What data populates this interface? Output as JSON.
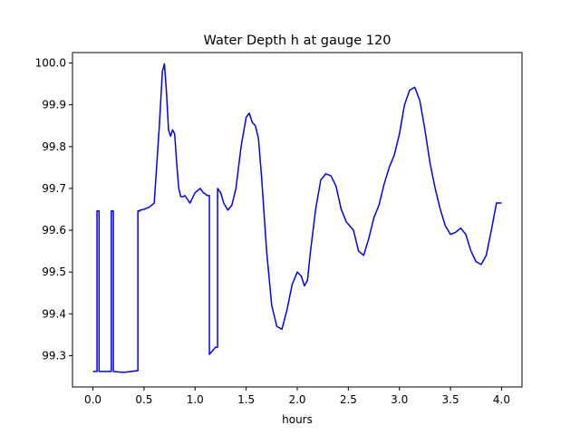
{
  "chart_data": {
    "type": "line",
    "title": "Water Depth h at gauge 120",
    "xlabel": "hours",
    "ylabel": "",
    "xlim": [
      -0.2,
      4.2
    ],
    "ylim": [
      99.225,
      100.025
    ],
    "xticks": [
      0.0,
      0.5,
      1.0,
      1.5,
      2.0,
      2.5,
      3.0,
      3.5,
      4.0
    ],
    "xtick_labels": [
      "0.0",
      "0.5",
      "1.0",
      "1.5",
      "2.0",
      "2.5",
      "3.0",
      "3.5",
      "4.0"
    ],
    "yticks": [
      99.3,
      99.4,
      99.5,
      99.6,
      99.7,
      99.8,
      99.9,
      100.0
    ],
    "ytick_labels": [
      "99.3",
      "99.4",
      "99.5",
      "99.6",
      "99.7",
      "99.8",
      "99.9",
      "100.0"
    ],
    "grid": false,
    "color": "#0000ff",
    "series": [
      {
        "x": [
          0.0,
          0.04,
          0.04,
          0.06,
          0.06,
          0.18,
          0.18,
          0.2,
          0.2,
          0.3,
          0.44,
          0.44,
          0.46,
          0.46,
          0.5,
          0.55,
          0.6,
          0.65,
          0.68,
          0.7,
          0.72,
          0.74,
          0.76,
          0.78,
          0.8,
          0.82,
          0.84,
          0.86,
          0.88,
          0.9,
          0.95,
          1.0,
          1.05,
          1.08,
          1.12,
          1.14,
          1.14,
          1.2,
          1.22,
          1.22,
          1.25,
          1.28,
          1.32,
          1.36,
          1.4,
          1.45,
          1.5,
          1.53,
          1.56,
          1.59,
          1.62,
          1.65,
          1.7,
          1.75,
          1.8,
          1.85,
          1.9,
          1.95,
          2.0,
          2.04,
          2.07,
          2.1,
          2.13,
          2.18,
          2.23,
          2.28,
          2.33,
          2.38,
          2.43,
          2.48,
          2.55,
          2.6,
          2.65,
          2.7,
          2.75,
          2.8,
          2.85,
          2.9,
          2.95,
          3.0,
          3.05,
          3.1,
          3.15,
          3.2,
          3.25,
          3.3,
          3.35,
          3.4,
          3.45,
          3.5,
          3.55,
          3.6,
          3.65,
          3.7,
          3.75,
          3.8,
          3.85,
          3.9,
          3.95,
          4.0
        ],
        "y": [
          99.262,
          99.262,
          99.646,
          99.646,
          99.262,
          99.262,
          99.646,
          99.646,
          99.262,
          99.26,
          99.264,
          99.646,
          99.646,
          99.648,
          99.65,
          99.655,
          99.665,
          99.85,
          99.98,
          99.998,
          99.93,
          99.84,
          99.825,
          99.84,
          99.83,
          99.76,
          99.7,
          99.68,
          99.68,
          99.683,
          99.665,
          99.69,
          99.7,
          99.69,
          99.683,
          99.683,
          99.303,
          99.32,
          99.32,
          99.7,
          99.69,
          99.665,
          99.648,
          99.66,
          99.7,
          99.8,
          99.87,
          99.88,
          99.858,
          99.85,
          99.82,
          99.73,
          99.55,
          99.42,
          99.37,
          99.363,
          99.41,
          99.47,
          99.5,
          99.49,
          99.467,
          99.48,
          99.55,
          99.65,
          99.72,
          99.735,
          99.73,
          99.705,
          99.65,
          99.62,
          99.6,
          99.55,
          99.54,
          99.58,
          99.63,
          99.66,
          99.71,
          99.75,
          99.78,
          99.83,
          99.9,
          99.935,
          99.942,
          99.91,
          99.84,
          99.76,
          99.7,
          99.65,
          99.61,
          99.59,
          99.595,
          99.605,
          99.59,
          99.55,
          99.525,
          99.518,
          99.54,
          99.6,
          99.665,
          99.665
        ]
      }
    ]
  }
}
